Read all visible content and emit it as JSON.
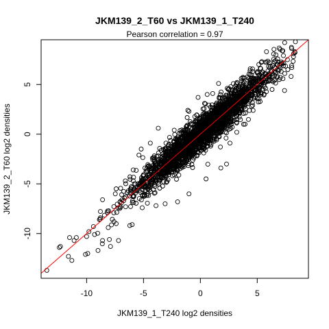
{
  "chart_data": {
    "type": "scatter",
    "title": "JKM139_2_T60 vs JKM139_1_T240",
    "subtitle": "Pearson correlation =  0.97",
    "xlabel": "JKM139_1_T240 log2 densities",
    "ylabel": "JKM139_2_T60 log2 densities",
    "xlim": [
      -14.0,
      9.5
    ],
    "ylim": [
      -14.5,
      9.5
    ],
    "x_ticks": [
      -10,
      -5,
      0,
      5
    ],
    "x_tick_labels": [
      "-10",
      "-5",
      "0",
      "5"
    ],
    "y_ticks": [
      -10,
      -5,
      0,
      5
    ],
    "y_tick_labels": [
      "-10",
      "-5",
      "0",
      "5"
    ],
    "grid": false,
    "marker": "open-circle",
    "point_color": "#000000",
    "reference_line": {
      "slope": 1,
      "intercept": 0,
      "color": "#ff0000"
    },
    "cloud": {
      "n": 2600,
      "x_center": 0.3,
      "x_sd": 3.0,
      "residual_sd": 0.9,
      "x_range": [
        -13.5,
        8.5
      ],
      "seed": 139
    },
    "points": [
      [
        -13.5,
        -13.7
      ],
      [
        -12.4,
        -11.4
      ],
      [
        -12.3,
        -11.3
      ],
      [
        -11.6,
        -12.3
      ],
      [
        -11.5,
        -10.4
      ],
      [
        -11.3,
        -12.7
      ],
      [
        -11.1,
        -10.7
      ],
      [
        -10.9,
        -10.4
      ],
      [
        -10.1,
        -12.1
      ],
      [
        -9.9,
        -12.0
      ],
      [
        -10.0,
        -10.3
      ],
      [
        -9.8,
        -9.8
      ],
      [
        -9.4,
        -9.3
      ],
      [
        -9.3,
        -10.1
      ],
      [
        -9.0,
        -11.7
      ],
      [
        -8.6,
        -10.7
      ],
      [
        -8.1,
        -9.4
      ],
      [
        -8.0,
        -10.6
      ],
      [
        -7.9,
        -11.3
      ],
      [
        -7.4,
        -9.0
      ],
      [
        -7.2,
        -10.7
      ],
      [
        -8.6,
        -6.6
      ],
      [
        -7.4,
        -5.5
      ],
      [
        -6.6,
        -4.7
      ],
      [
        -5.9,
        -3.6
      ],
      [
        -6.2,
        -9.2
      ],
      [
        -6.0,
        -9.1
      ],
      [
        -3.9,
        -7.2
      ],
      [
        -5.4,
        -2.1
      ],
      [
        -5.2,
        -1.5
      ],
      [
        -3.7,
        0.6
      ],
      [
        -2.3,
        0.4
      ],
      [
        -1.1,
        2.4
      ],
      [
        -1.0,
        2.3
      ],
      [
        -0.2,
        3.7
      ],
      [
        0.6,
        4.0
      ],
      [
        1.6,
        5.1
      ],
      [
        3.0,
        4.4
      ],
      [
        4.6,
        6.3
      ],
      [
        5.3,
        6.6
      ],
      [
        6.6,
        7.4
      ],
      [
        7.3,
        7.9
      ],
      [
        8.3,
        8.3
      ],
      [
        8.2,
        8.1
      ],
      [
        3.2,
        0.2
      ],
      [
        3.8,
        1.0
      ],
      [
        4.5,
        2.8
      ],
      [
        5.3,
        4.2
      ],
      [
        2.3,
        -3.0
      ],
      [
        1.8,
        -3.4
      ],
      [
        0.5,
        -4.5
      ],
      [
        -1.0,
        -6.0
      ],
      [
        -2.0,
        -6.8
      ],
      [
        -3.1,
        -7.0
      ],
      [
        -0.5,
        -2.2
      ],
      [
        2.6,
        -0.9
      ],
      [
        -4.4,
        -0.9
      ],
      [
        -5.8,
        -5.7
      ],
      [
        -4.6,
        -4.2
      ],
      [
        -3.2,
        -3.0
      ]
    ]
  }
}
